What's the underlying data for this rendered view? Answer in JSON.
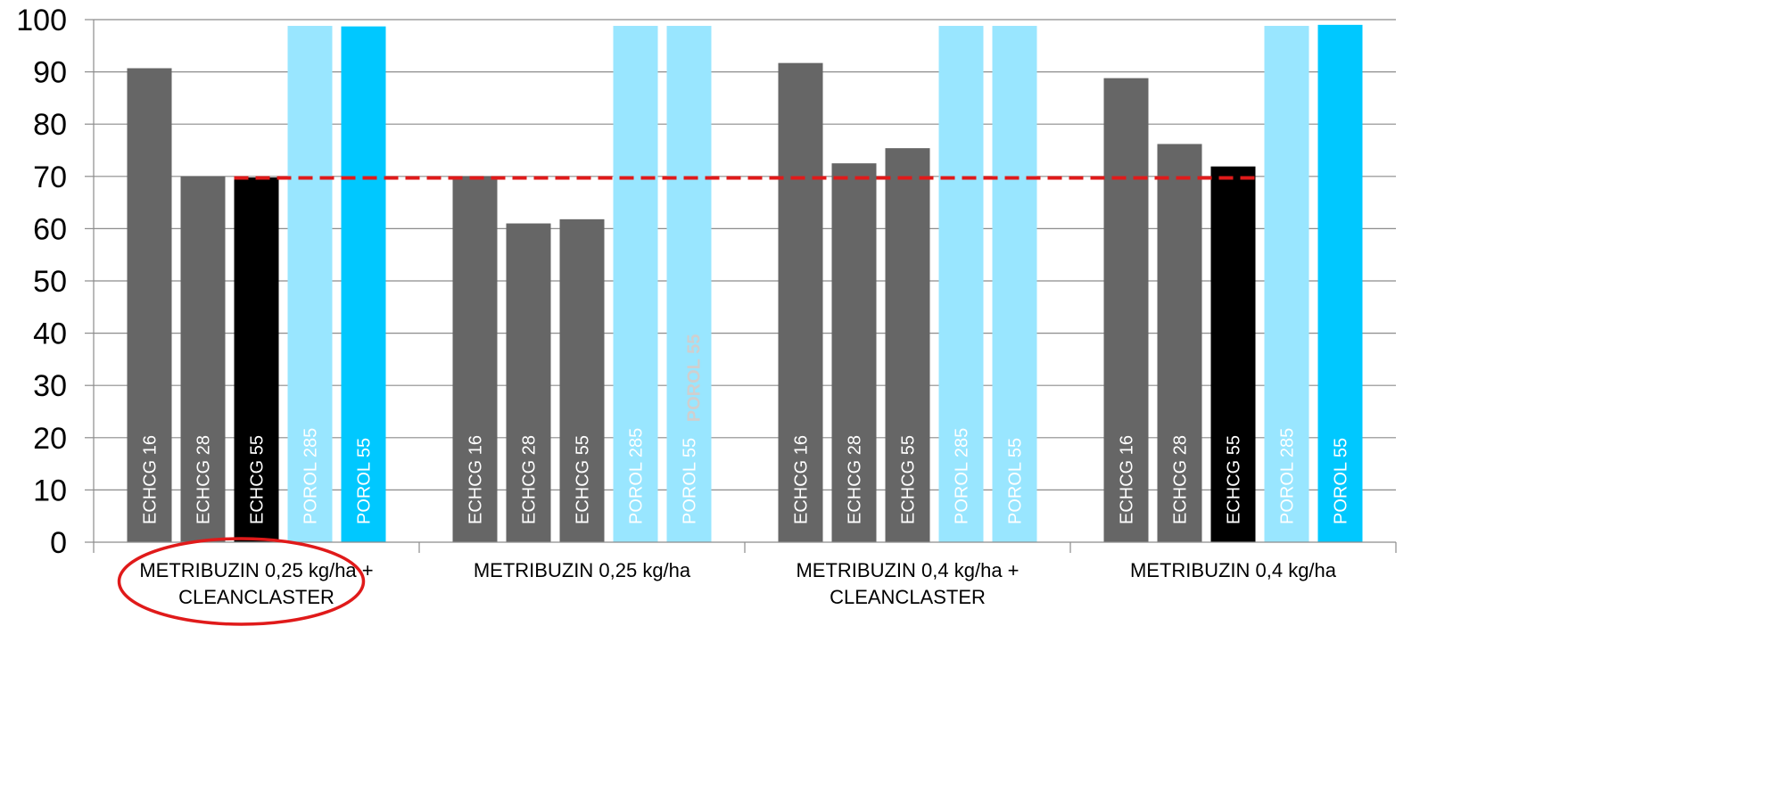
{
  "chart_data": {
    "type": "bar",
    "ylim": [
      0,
      100
    ],
    "yticks": [
      0,
      10,
      20,
      30,
      40,
      50,
      60,
      70,
      80,
      90,
      100
    ],
    "grid": true,
    "reference_line": {
      "value": 69.7,
      "color": "#e01a1a",
      "style": "dashed",
      "from_group": 0,
      "to_group": 3
    },
    "groups": [
      {
        "label_lines": [
          "METRIBUZIN 0,25 kg/ha +",
          "CLEANCLASTER"
        ],
        "highlighted": true,
        "bars": [
          {
            "label": "ECHCG 16",
            "value": 90.7,
            "color": "#666666",
            "text_color": "#ffffff"
          },
          {
            "label": "ECHCG 28",
            "value": 70.0,
            "color": "#666666",
            "text_color": "#ffffff"
          },
          {
            "label": "ECHCG 55",
            "value": 69.8,
            "color": "#000000",
            "text_color": "#ffffff"
          },
          {
            "label": "POROL 285",
            "value": 98.8,
            "color": "#99e6ff",
            "text_color": "#ffffff"
          },
          {
            "label": "POROL 55",
            "value": 98.7,
            "color": "#00c8ff",
            "text_color": "#ffffff"
          }
        ]
      },
      {
        "label_lines": [
          "METRIBUZIN 0,25 kg/ha"
        ],
        "highlighted": false,
        "bars": [
          {
            "label": "ECHCG 16",
            "value": 70.0,
            "color": "#666666",
            "text_color": "#ffffff"
          },
          {
            "label": "ECHCG 28",
            "value": 61.0,
            "color": "#666666",
            "text_color": "#ffffff"
          },
          {
            "label": "ECHCG 55",
            "value": 61.8,
            "color": "#666666",
            "text_color": "#ffffff"
          },
          {
            "label": "POROL 285",
            "value": 98.8,
            "color": "#99e6ff",
            "text_color": "#ffffff"
          },
          {
            "label": "POROL 55",
            "value": 98.8,
            "color": "#99e6ff",
            "text_color": "#ffffff"
          }
        ]
      },
      {
        "label_lines": [
          "METRIBUZIN 0,4 kg/ha +",
          "CLEANCLASTER"
        ],
        "highlighted": false,
        "bars": [
          {
            "label": "ECHCG 16",
            "value": 91.7,
            "color": "#666666",
            "text_color": "#ffffff"
          },
          {
            "label": "ECHCG 28",
            "value": 72.5,
            "color": "#666666",
            "text_color": "#ffffff"
          },
          {
            "label": "ECHCG 55",
            "value": 75.4,
            "color": "#666666",
            "text_color": "#ffffff"
          },
          {
            "label": "POROL 285",
            "value": 98.8,
            "color": "#99e6ff",
            "text_color": "#ffffff"
          },
          {
            "label": "POROL 55",
            "value": 98.8,
            "color": "#99e6ff",
            "text_color": "#ffffff"
          }
        ]
      },
      {
        "label_lines": [
          "METRIBUZIN 0,4 kg/ha"
        ],
        "highlighted": false,
        "bars": [
          {
            "label": "ECHCG 16",
            "value": 88.8,
            "color": "#666666",
            "text_color": "#ffffff"
          },
          {
            "label": "ECHCG 28",
            "value": 76.2,
            "color": "#666666",
            "text_color": "#ffffff"
          },
          {
            "label": "ECHCG 55",
            "value": 71.9,
            "color": "#000000",
            "text_color": "#ffffff"
          },
          {
            "label": "POROL 285",
            "value": 98.8,
            "color": "#99e6ff",
            "text_color": "#ffffff"
          },
          {
            "label": "POROL 55",
            "value": 99.0,
            "color": "#00c8ff",
            "text_color": "#ffffff"
          }
        ]
      }
    ],
    "stray_text": {
      "text": "POROL 55",
      "color": "#cfcfcf"
    },
    "highlight_ellipse_color": "#e01a1a"
  }
}
